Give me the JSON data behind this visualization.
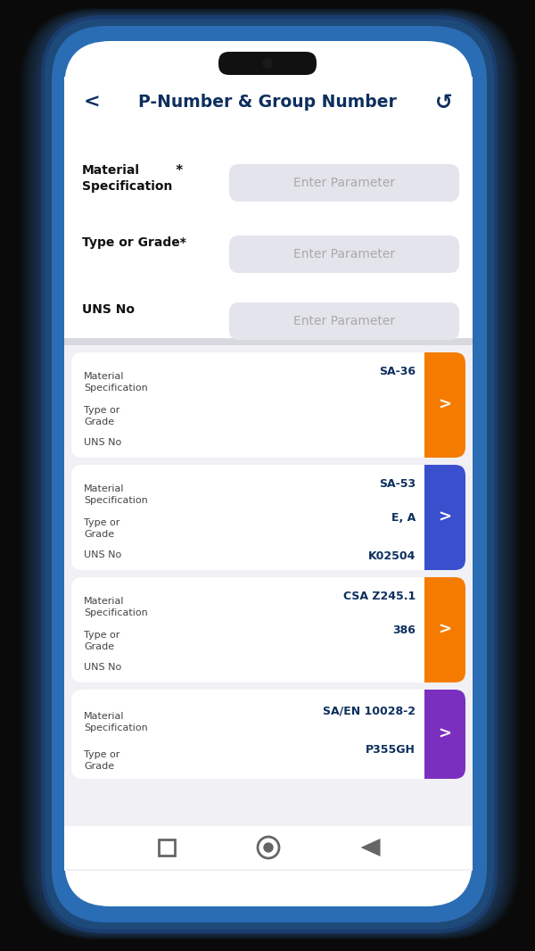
{
  "title": "P-Number & Group Number",
  "phone_outer_color": "#1e4a7a",
  "phone_inner_color": "#2a6db5",
  "screen_bg": "#f0f0f5",
  "header_bg": "#ffffff",
  "title_color": "#0d2f5e",
  "card_bg": "#ffffff",
  "label_color": "#333333",
  "value_color": "#0d2f5e",
  "input_bg": "#e4e4ec",
  "input_text": "#aaaaaa",
  "input_placeholder": "Enter Parameter",
  "card_data": [
    {
      "mat": "SA-36",
      "grade": "",
      "uns": "",
      "color": "#F57C00"
    },
    {
      "mat": "SA-53",
      "grade": "E, A",
      "uns": "K02504",
      "color": "#3a4fce"
    },
    {
      "mat": "CSA Z245.1",
      "grade": "386",
      "uns": "",
      "color": "#F57C00"
    },
    {
      "mat": "SA/EN 10028-2",
      "grade": "P355GH",
      "uns": "",
      "color": "#7b2fbe"
    }
  ],
  "figsize": [
    6.0,
    10.66
  ]
}
